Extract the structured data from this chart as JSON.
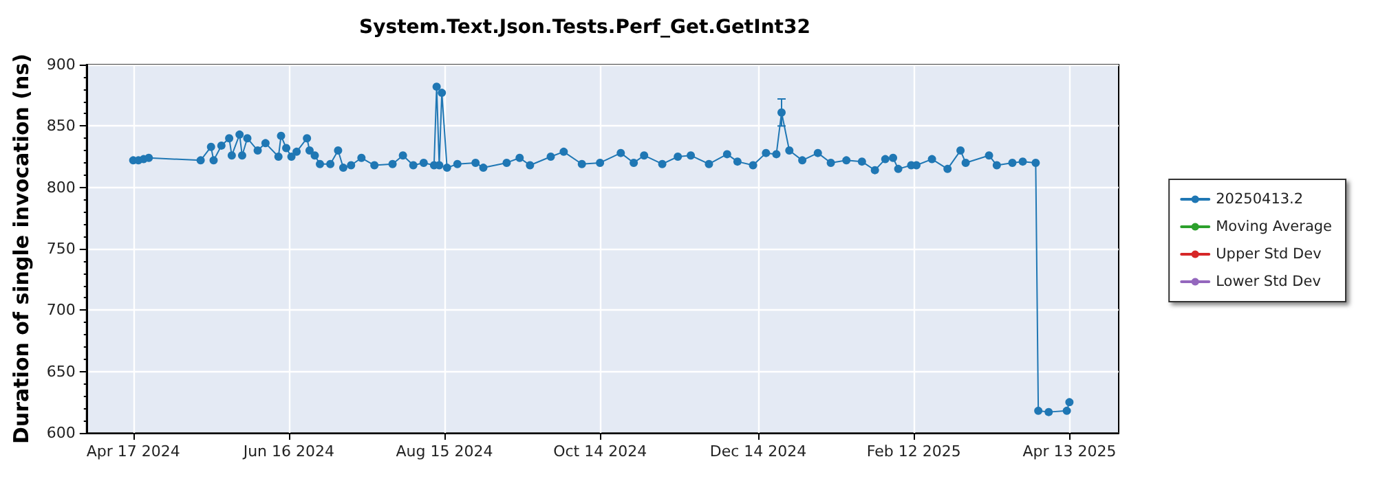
{
  "chart_data": {
    "type": "line",
    "title": "System.Text.Json.Tests.Perf_Get.GetInt32",
    "ylabel": "Duration of single invocation (ns)",
    "xlim": [
      "2024-03-30",
      "2025-05-02"
    ],
    "ylim": [
      600,
      900
    ],
    "xticks": [
      {
        "value": "2024-04-17",
        "label": "Apr 17 2024"
      },
      {
        "value": "2024-06-16",
        "label": "Jun 16 2024"
      },
      {
        "value": "2024-08-15",
        "label": "Aug 15 2024"
      },
      {
        "value": "2024-10-14",
        "label": "Oct 14 2024"
      },
      {
        "value": "2024-12-14",
        "label": "Dec 14 2024"
      },
      {
        "value": "2025-02-12",
        "label": "Feb 12 2025"
      },
      {
        "value": "2025-04-13",
        "label": "Apr 13 2025"
      }
    ],
    "yticks": [
      600,
      650,
      700,
      750,
      800,
      850,
      900
    ],
    "grid": true,
    "legend": "right",
    "marker": "circle",
    "line_style": "solid",
    "series": [
      {
        "name": "20250413.2",
        "color": "#1f77b4",
        "x": [
          "2024-04-17",
          "2024-04-19",
          "2024-04-21",
          "2024-04-23",
          "2024-05-13",
          "2024-05-17",
          "2024-05-18",
          "2024-05-21",
          "2024-05-24",
          "2024-05-25",
          "2024-05-28",
          "2024-05-29",
          "2024-05-31",
          "2024-06-04",
          "2024-06-07",
          "2024-06-12",
          "2024-06-13",
          "2024-06-15",
          "2024-06-17",
          "2024-06-19",
          "2024-06-23",
          "2024-06-24",
          "2024-06-26",
          "2024-06-28",
          "2024-07-02",
          "2024-07-05",
          "2024-07-07",
          "2024-07-10",
          "2024-07-14",
          "2024-07-19",
          "2024-07-26",
          "2024-07-30",
          "2024-08-03",
          "2024-08-07",
          "2024-08-11",
          "2024-08-12",
          "2024-08-13",
          "2024-08-14",
          "2024-08-16",
          "2024-08-20",
          "2024-08-27",
          "2024-08-30",
          "2024-09-08",
          "2024-09-13",
          "2024-09-17",
          "2024-09-25",
          "2024-09-30",
          "2024-10-07",
          "2024-10-14",
          "2024-10-22",
          "2024-10-27",
          "2024-10-31",
          "2024-11-07",
          "2024-11-13",
          "2024-11-18",
          "2024-11-25",
          "2024-12-02",
          "2024-12-06",
          "2024-12-12",
          "2024-12-17",
          "2024-12-21",
          "2024-12-23",
          "2024-12-26",
          "2024-12-31",
          "2025-01-06",
          "2025-01-11",
          "2025-01-17",
          "2025-01-23",
          "2025-01-28",
          "2025-02-01",
          "2025-02-04",
          "2025-02-06",
          "2025-02-11",
          "2025-02-13",
          "2025-02-19",
          "2025-02-25",
          "2025-03-02",
          "2025-03-04",
          "2025-03-13",
          "2025-03-16",
          "2025-03-22",
          "2025-03-26",
          "2025-03-31",
          "2025-04-01",
          "2025-04-05",
          "2025-04-12",
          "2025-04-13"
        ],
        "values": [
          822,
          822,
          823,
          824,
          822,
          833,
          822,
          834,
          840,
          826,
          843,
          826,
          840,
          830,
          836,
          825,
          842,
          832,
          825,
          829,
          840,
          830,
          826,
          819,
          819,
          830,
          816,
          818,
          824,
          818,
          819,
          826,
          818,
          820,
          818,
          882,
          818,
          877,
          816,
          819,
          820,
          816,
          820,
          824,
          818,
          825,
          829,
          819,
          820,
          828,
          820,
          826,
          819,
          825,
          826,
          819,
          827,
          821,
          818,
          828,
          827,
          861,
          830,
          822,
          828,
          820,
          822,
          821,
          814,
          823,
          824,
          815,
          818,
          818,
          823,
          815,
          830,
          820,
          826,
          818,
          820,
          821,
          820,
          618,
          617,
          618,
          625
        ],
        "errors": [
          null,
          null,
          null,
          null,
          null,
          null,
          null,
          null,
          null,
          null,
          null,
          null,
          null,
          null,
          null,
          null,
          null,
          null,
          null,
          null,
          null,
          null,
          null,
          null,
          null,
          null,
          null,
          null,
          null,
          null,
          null,
          null,
          null,
          null,
          null,
          null,
          null,
          null,
          null,
          null,
          null,
          null,
          null,
          null,
          null,
          null,
          null,
          null,
          null,
          null,
          null,
          null,
          null,
          null,
          null,
          null,
          null,
          null,
          null,
          null,
          null,
          [
            850,
            872
          ],
          null,
          null,
          null,
          null,
          null,
          null,
          null,
          null,
          null,
          null,
          null,
          null,
          null,
          null,
          null,
          null,
          null,
          null,
          null,
          null,
          null,
          null,
          null,
          null,
          null
        ]
      },
      {
        "name": "Moving Average",
        "color": "#2ca02c"
      },
      {
        "name": "Upper Std Dev",
        "color": "#d62728"
      },
      {
        "name": "Lower Std Dev",
        "color": "#9467bd"
      }
    ]
  }
}
